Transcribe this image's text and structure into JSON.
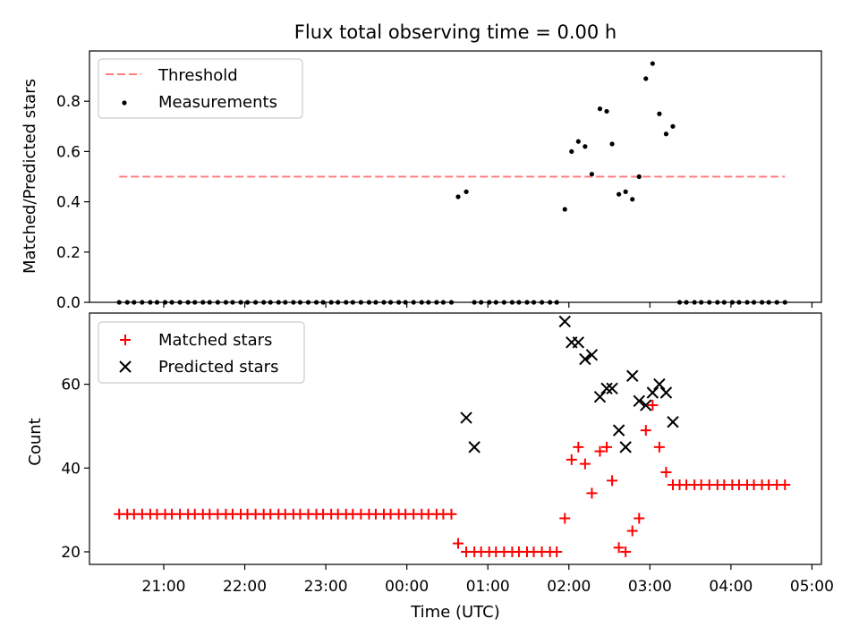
{
  "chart_data": [
    {
      "type": "scatter",
      "title": "Flux total observing time = 0.00 h",
      "xlabel": "",
      "ylabel": "Matched/Predicted stars",
      "ylim": [
        0,
        1.0
      ],
      "yticks": [
        "0.0",
        "0.2",
        "0.4",
        "0.6",
        "0.8"
      ],
      "threshold": {
        "name": "Threshold",
        "value": 0.5,
        "x_start": "20:27",
        "x_end": "04:40",
        "color": "#ff7f7f"
      },
      "measurements_name": "Measurements",
      "measurements_color": "#000000",
      "legend": "top-left",
      "x": [
        "20:27",
        "20:33",
        "20:38",
        "20:44",
        "20:50",
        "20:55",
        "21:01",
        "21:06",
        "21:12",
        "21:18",
        "21:23",
        "21:29",
        "21:34",
        "21:40",
        "21:46",
        "21:51",
        "21:57",
        "22:02",
        "22:08",
        "22:14",
        "22:19",
        "22:25",
        "22:30",
        "22:36",
        "22:41",
        "22:47",
        "22:53",
        "22:58",
        "23:04",
        "23:09",
        "23:15",
        "23:20",
        "23:26",
        "23:32",
        "23:37",
        "23:43",
        "23:48",
        "23:54",
        "23:59",
        "00:05",
        "00:11",
        "00:16",
        "00:22",
        "00:27",
        "00:33",
        "00:38",
        "00:44",
        "00:50",
        "00:55",
        "01:01",
        "01:06",
        "01:12",
        "01:18",
        "01:23",
        "01:29",
        "01:34",
        "01:40",
        "01:46",
        "01:51",
        "01:57",
        "02:02",
        "02:07",
        "02:12",
        "02:17",
        "02:23",
        "02:28",
        "02:32",
        "02:37",
        "02:42",
        "02:47",
        "02:52",
        "02:57",
        "03:02",
        "03:07",
        "03:12",
        "03:17",
        "03:22",
        "03:27",
        "03:33",
        "03:38",
        "03:44",
        "03:50",
        "03:55",
        "04:01",
        "04:06",
        "04:12",
        "04:17",
        "04:23",
        "04:28",
        "04:34",
        "04:40"
      ],
      "y": [
        0,
        0,
        0,
        0,
        0,
        0,
        0,
        0,
        0,
        0,
        0,
        0,
        0,
        0,
        0,
        0,
        0,
        0,
        0,
        0,
        0,
        0,
        0,
        0,
        0,
        0,
        0,
        0,
        0,
        0,
        0,
        0,
        0,
        0,
        0,
        0,
        0,
        0,
        0,
        0,
        0,
        0,
        0,
        0,
        0,
        0.42,
        0.44,
        0,
        0,
        0,
        0,
        0,
        0,
        0,
        0,
        0,
        0,
        0,
        0,
        0.37,
        0.6,
        0.64,
        0.62,
        0.51,
        0.77,
        0.76,
        0.63,
        0.43,
        0.44,
        0.41,
        0.5,
        0.89,
        0.95,
        0.75,
        0.67,
        0.7,
        0,
        0,
        0,
        0,
        0,
        0,
        0,
        0,
        0,
        0,
        0,
        0,
        0,
        0,
        0
      ]
    },
    {
      "type": "scatter",
      "xlabel": "Time (UTC)",
      "ylabel": "Count",
      "ylim": [
        17,
        77
      ],
      "yticks": [
        "20",
        "40",
        "60"
      ],
      "xticks": [
        "21:00",
        "22:00",
        "23:00",
        "00:00",
        "01:00",
        "02:00",
        "03:00",
        "04:00",
        "05:00"
      ],
      "legend": "top-left",
      "series": [
        {
          "name": "Matched stars",
          "color": "#ff0000",
          "marker": "plus",
          "x": [
            "20:27",
            "20:33",
            "20:38",
            "20:44",
            "20:50",
            "20:55",
            "21:01",
            "21:06",
            "21:12",
            "21:18",
            "21:23",
            "21:29",
            "21:34",
            "21:40",
            "21:46",
            "21:51",
            "21:57",
            "22:02",
            "22:08",
            "22:14",
            "22:19",
            "22:25",
            "22:30",
            "22:36",
            "22:41",
            "22:47",
            "22:53",
            "22:58",
            "23:04",
            "23:09",
            "23:15",
            "23:20",
            "23:26",
            "23:32",
            "23:37",
            "23:43",
            "23:48",
            "23:54",
            "23:59",
            "00:05",
            "00:11",
            "00:16",
            "00:22",
            "00:27",
            "00:33",
            "00:38",
            "00:44",
            "00:50",
            "00:55",
            "01:01",
            "01:06",
            "01:12",
            "01:18",
            "01:23",
            "01:29",
            "01:34",
            "01:40",
            "01:46",
            "01:51",
            "01:57",
            "02:02",
            "02:07",
            "02:12",
            "02:17",
            "02:23",
            "02:28",
            "02:32",
            "02:37",
            "02:42",
            "02:47",
            "02:52",
            "02:57",
            "03:02",
            "03:07",
            "03:12",
            "03:17",
            "03:22",
            "03:27",
            "03:33",
            "03:38",
            "03:44",
            "03:50",
            "03:55",
            "04:01",
            "04:06",
            "04:12",
            "04:17",
            "04:23",
            "04:28",
            "04:34",
            "04:40"
          ],
          "values": [
            29,
            29,
            29,
            29,
            29,
            29,
            29,
            29,
            29,
            29,
            29,
            29,
            29,
            29,
            29,
            29,
            29,
            29,
            29,
            29,
            29,
            29,
            29,
            29,
            29,
            29,
            29,
            29,
            29,
            29,
            29,
            29,
            29,
            29,
            29,
            29,
            29,
            29,
            29,
            29,
            29,
            29,
            29,
            29,
            29,
            22,
            20,
            20,
            20,
            20,
            20,
            20,
            20,
            20,
            20,
            20,
            20,
            20,
            20,
            28,
            42,
            45,
            41,
            34,
            44,
            45,
            37,
            21,
            20,
            25,
            28,
            49,
            55,
            45,
            39,
            36,
            36,
            36,
            36,
            36,
            36,
            36,
            36,
            36,
            36,
            36,
            36,
            36,
            36,
            36,
            36
          ]
        },
        {
          "name": "Predicted stars",
          "color": "#000000",
          "marker": "x",
          "x": [
            "00:44",
            "00:50",
            "01:57",
            "02:02",
            "02:07",
            "02:12",
            "02:17",
            "02:23",
            "02:28",
            "02:32",
            "02:37",
            "02:42",
            "02:47",
            "02:52",
            "02:57",
            "03:02",
            "03:07",
            "03:12",
            "03:17"
          ],
          "values": [
            52,
            45,
            75,
            70,
            70,
            66,
            67,
            57,
            59,
            59,
            49,
            45,
            62,
            56,
            55,
            58,
            60,
            58,
            51
          ]
        }
      ]
    }
  ]
}
